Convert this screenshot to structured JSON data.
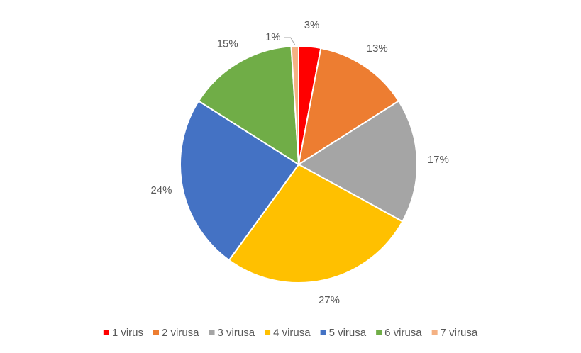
{
  "chart_data": {
    "type": "pie",
    "categories": [
      "1 virus",
      "2 virusa",
      "3 virusa",
      "4 virusa",
      "5 virusa",
      "6 virusa",
      "7 virusa"
    ],
    "values": [
      3,
      13,
      17,
      27,
      24,
      15,
      1
    ],
    "value_labels": [
      "3%",
      "13%",
      "17%",
      "27%",
      "24%",
      "15%",
      "1%"
    ],
    "colors": [
      "#ff0000",
      "#ed7d31",
      "#a5a5a5",
      "#ffc000",
      "#4472c4",
      "#70ad47",
      "#f4b183"
    ],
    "legend": "bottom"
  }
}
